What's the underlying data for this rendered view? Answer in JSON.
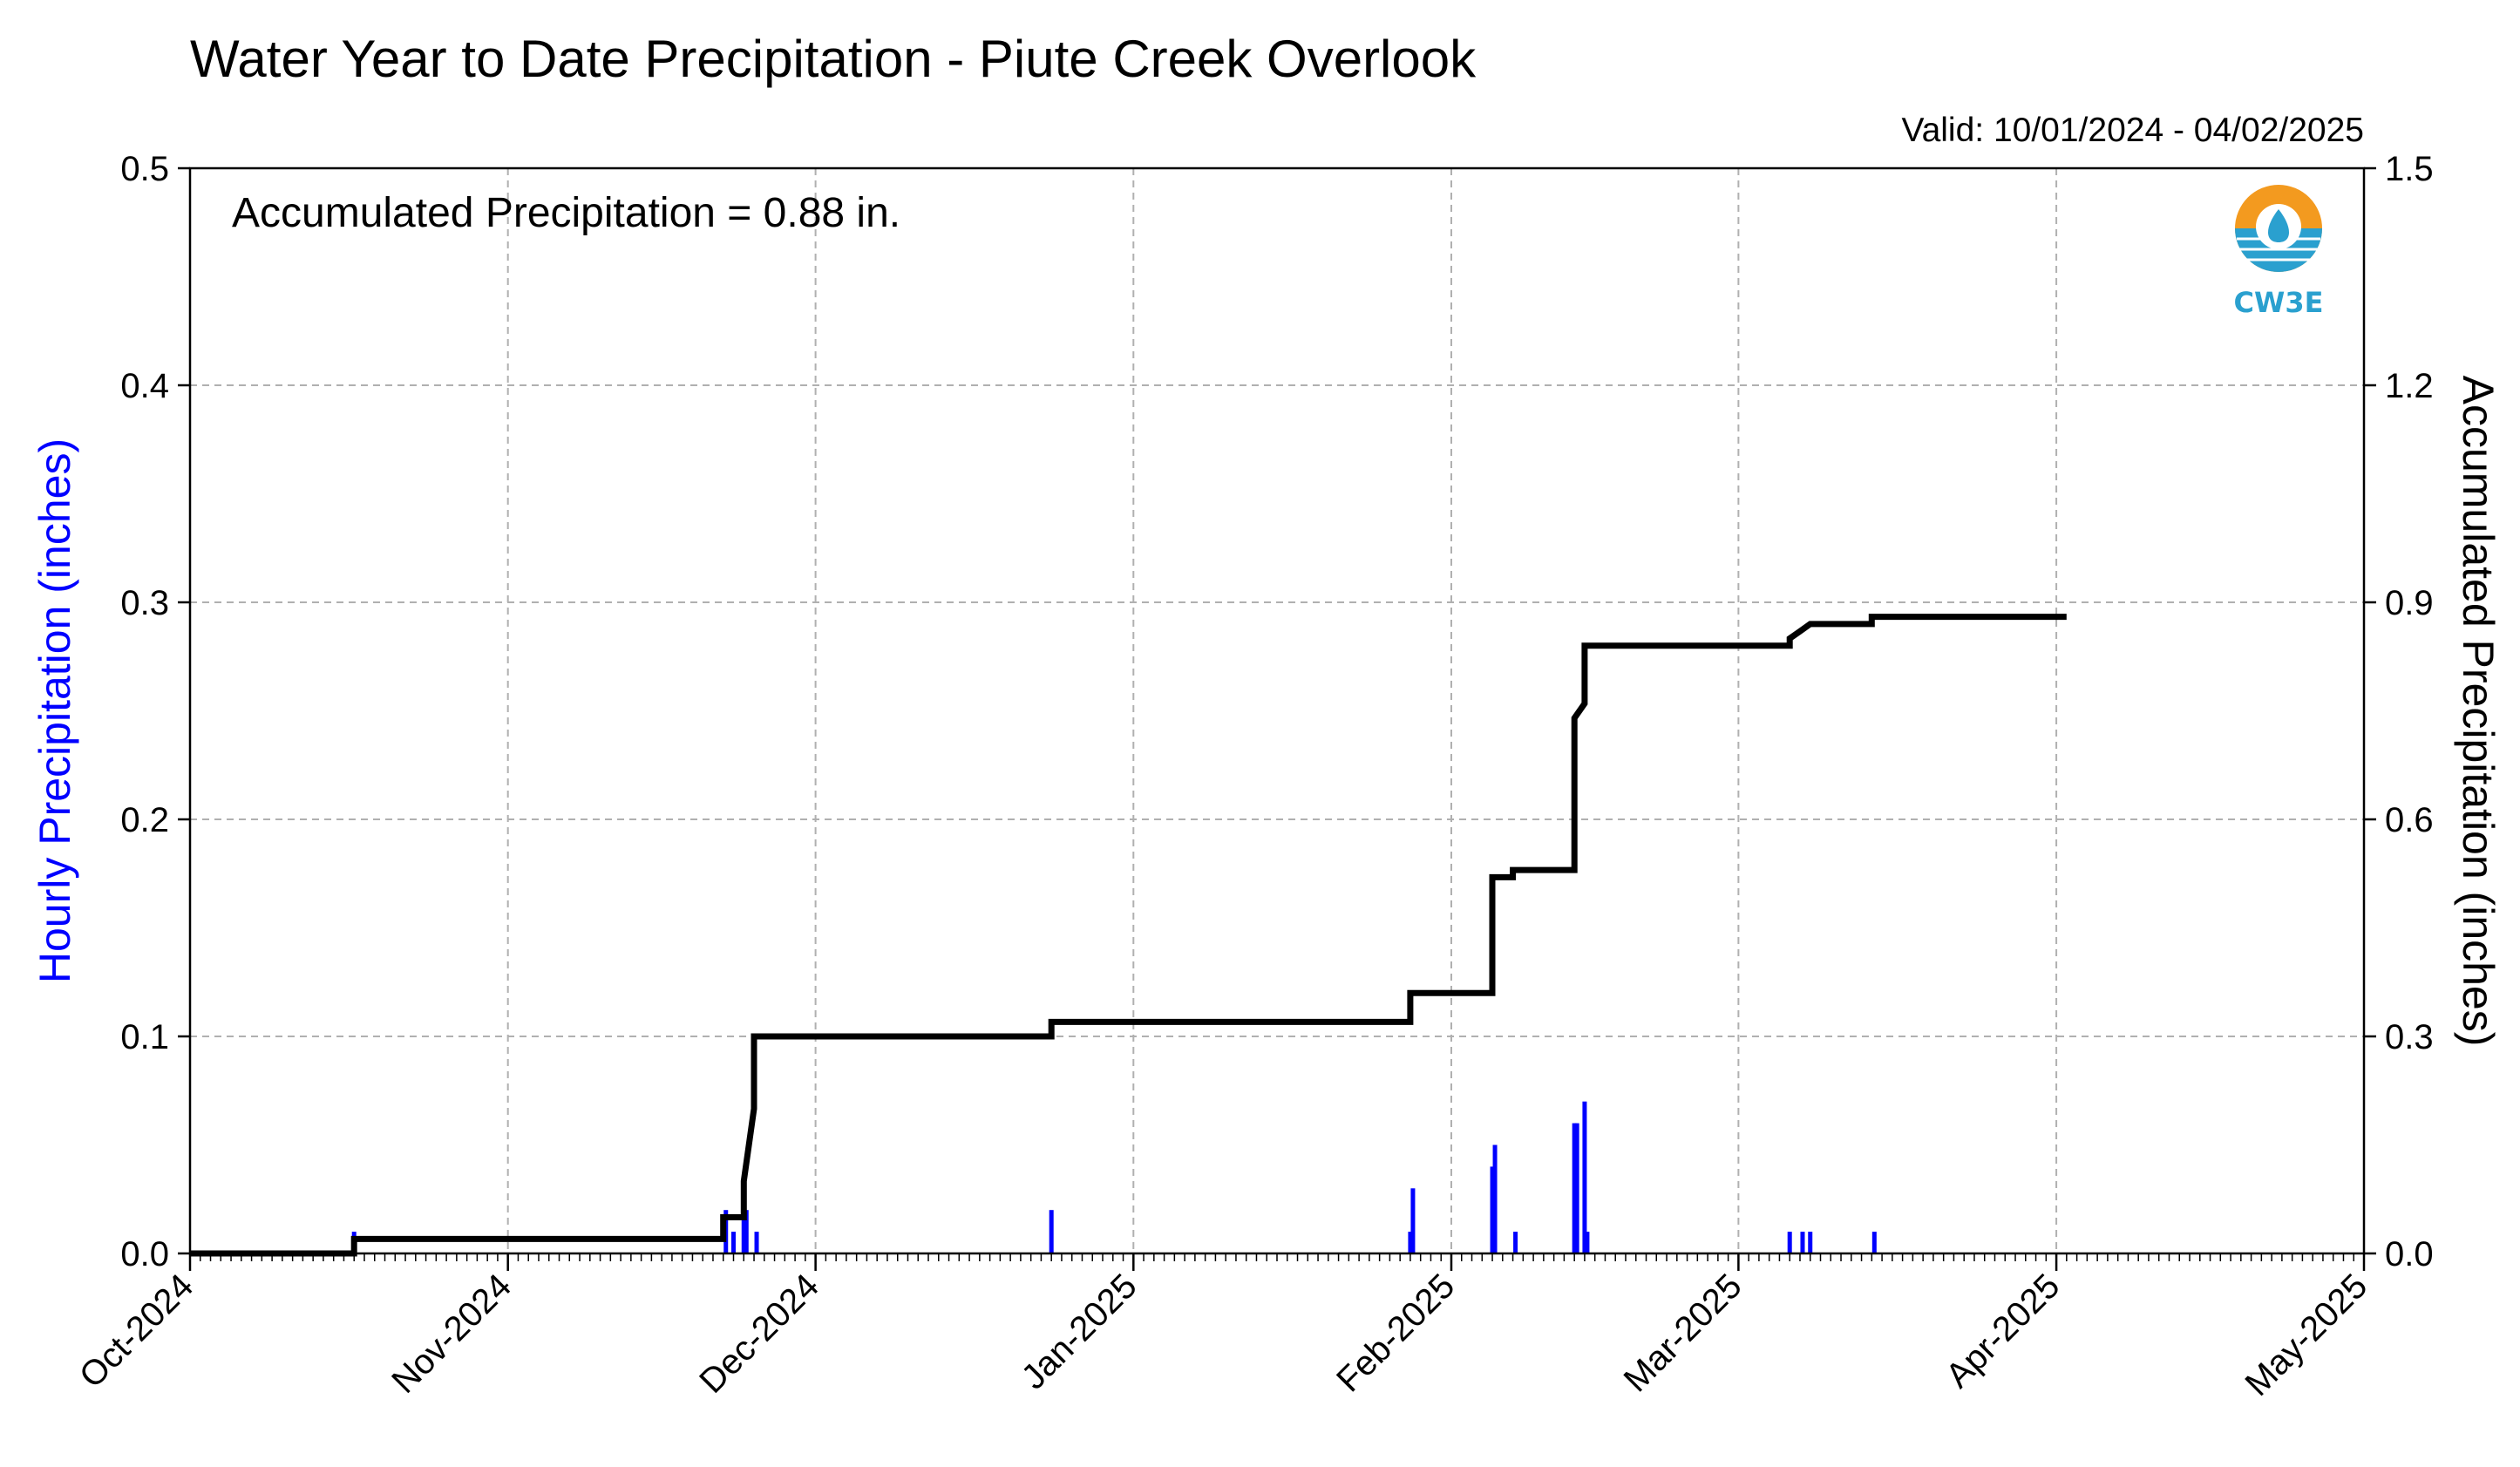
{
  "chart_data": {
    "type": "bar+line",
    "title": "Water Year to Date Precipitation - Piute Creek Overlook",
    "valid_text": "Valid: 10/01/2024 - 04/02/2025",
    "annotation": "Accumulated Precipitation = 0.88 in.",
    "logo_text": "CW3E",
    "x_axis": {
      "tick_dates": [
        "2024-10-01",
        "2024-11-01",
        "2024-12-01",
        "2025-01-01",
        "2025-02-01",
        "2025-03-01",
        "2025-04-01",
        "2025-05-01"
      ],
      "tick_labels": [
        "Oct-2024",
        "Nov-2024",
        "Dec-2024",
        "Jan-2025",
        "Feb-2025",
        "Mar-2025",
        "Apr-2025",
        "May-2025"
      ],
      "range": [
        "2024-10-01",
        "2025-05-01"
      ]
    },
    "y_left": {
      "label": "Hourly Precipitation (inches)",
      "range": [
        0,
        0.5
      ],
      "ticks": [
        "0.0",
        "0.1",
        "0.2",
        "0.3",
        "0.4",
        "0.5"
      ],
      "color": "#0000ff"
    },
    "y_right": {
      "label": "Accumulated Precipitation (inches)",
      "range": [
        0,
        1.5
      ],
      "ticks": [
        "0.0",
        "0.3",
        "0.6",
        "0.9",
        "1.2",
        "1.5"
      ],
      "color": "#000000"
    },
    "grid": true,
    "series": [
      {
        "type": "bar",
        "axis": "left",
        "color": "#0000ff",
        "points": [
          [
            "2024-10-17",
            0.01
          ],
          [
            "2024-11-22",
            0.02
          ],
          [
            "2024-11-23",
            0.01
          ],
          [
            "2024-11-24",
            0.02
          ],
          [
            "2024-11-24",
            0.03
          ],
          [
            "2024-11-25",
            0.01
          ],
          [
            "2024-12-24",
            0.02
          ],
          [
            "2025-01-28",
            0.03
          ],
          [
            "2025-01-28",
            0.01
          ],
          [
            "2025-02-05",
            0.05
          ],
          [
            "2025-02-05",
            0.04
          ],
          [
            "2025-02-07",
            0.01
          ],
          [
            "2025-02-13",
            0.06
          ],
          [
            "2025-02-13",
            0.06
          ],
          [
            "2025-02-14",
            0.07
          ],
          [
            "2025-02-14",
            0.01
          ],
          [
            "2025-03-06",
            0.01
          ],
          [
            "2025-03-07",
            0.01
          ],
          [
            "2025-03-08",
            0.01
          ],
          [
            "2025-03-14",
            0.01
          ]
        ]
      },
      {
        "type": "line",
        "axis": "right",
        "color": "#000000",
        "points": [
          [
            "2024-10-01",
            0.0
          ],
          [
            "2024-10-17",
            0.0
          ],
          [
            "2024-10-17",
            0.02
          ],
          [
            "2024-11-22",
            0.02
          ],
          [
            "2024-11-22",
            0.05
          ],
          [
            "2024-11-24",
            0.05
          ],
          [
            "2024-11-24",
            0.07
          ],
          [
            "2024-11-24",
            0.1
          ],
          [
            "2024-11-25",
            0.2
          ],
          [
            "2024-11-25",
            0.3
          ],
          [
            "2024-12-24",
            0.3
          ],
          [
            "2024-12-24",
            0.32
          ],
          [
            "2025-01-28",
            0.32
          ],
          [
            "2025-01-28",
            0.36
          ],
          [
            "2025-02-05",
            0.36
          ],
          [
            "2025-02-05",
            0.46
          ],
          [
            "2025-02-05",
            0.52
          ],
          [
            "2025-02-07",
            0.52
          ],
          [
            "2025-02-07",
            0.53
          ],
          [
            "2025-02-13",
            0.53
          ],
          [
            "2025-02-13",
            0.62
          ],
          [
            "2025-02-13",
            0.74
          ],
          [
            "2025-02-14",
            0.76
          ],
          [
            "2025-02-14",
            0.84
          ],
          [
            "2025-03-06",
            0.84
          ],
          [
            "2025-03-06",
            0.85
          ],
          [
            "2025-03-07",
            0.86
          ],
          [
            "2025-03-08",
            0.87
          ],
          [
            "2025-03-14",
            0.87
          ],
          [
            "2025-03-14",
            0.88
          ],
          [
            "2025-04-02",
            0.88
          ]
        ]
      }
    ]
  }
}
